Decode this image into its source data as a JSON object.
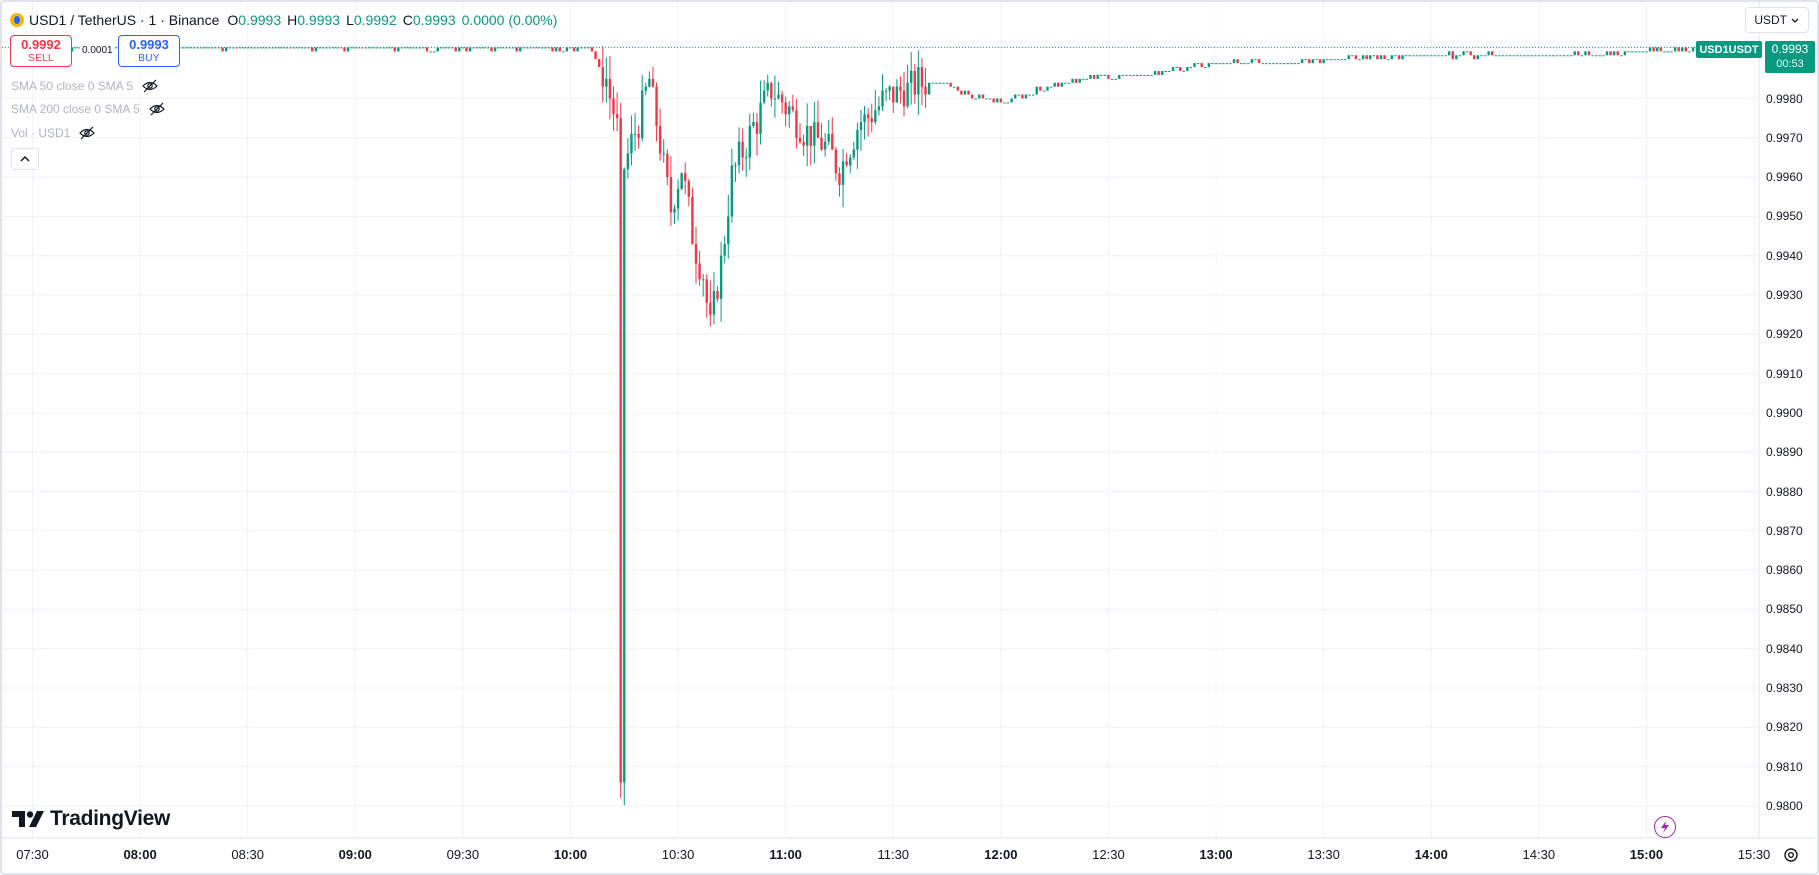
{
  "legend": {
    "symbol": "USD1 / TetherUS · 1 · Binance",
    "open_label": "O",
    "open_value": "0.9993",
    "high_label": "H",
    "high_value": "0.9993",
    "low_label": "L",
    "low_value": "0.9992",
    "close_label": "C",
    "close_value": "0.9993",
    "change_value": "0.0000 (0.00%)"
  },
  "trade": {
    "sell_price": "0.9992",
    "sell_label": "SELL",
    "spread": "0.0001",
    "buy_price": "0.9993",
    "buy_label": "BUY"
  },
  "studies": [
    {
      "label": "SMA 50 close 0 SMA 5"
    },
    {
      "label": "SMA 200 close 0 SMA 5"
    },
    {
      "label": "Vol · USD1"
    }
  ],
  "currency_selector": "USDT",
  "price_scale": {
    "symbol_label": "USD1USDT",
    "last_price": "0.9993",
    "countdown": "00:53",
    "ticks": [
      "0.9980",
      "0.9970",
      "0.9960",
      "0.9950",
      "0.9940",
      "0.9930",
      "0.9920",
      "0.9910",
      "0.9900",
      "0.9890",
      "0.9880",
      "0.9870",
      "0.9860",
      "0.9850",
      "0.9840",
      "0.9830",
      "0.9820",
      "0.9810",
      "0.9800"
    ]
  },
  "time_scale": {
    "ticks": [
      {
        "label": "07:30",
        "t": 450,
        "hour": false
      },
      {
        "label": "08:00",
        "t": 480,
        "hour": true
      },
      {
        "label": "08:30",
        "t": 510,
        "hour": false
      },
      {
        "label": "09:00",
        "t": 540,
        "hour": true
      },
      {
        "label": "09:30",
        "t": 570,
        "hour": false
      },
      {
        "label": "10:00",
        "t": 600,
        "hour": true
      },
      {
        "label": "10:30",
        "t": 630,
        "hour": false
      },
      {
        "label": "11:00",
        "t": 660,
        "hour": true
      },
      {
        "label": "11:30",
        "t": 690,
        "hour": false
      },
      {
        "label": "12:00",
        "t": 720,
        "hour": true
      },
      {
        "label": "12:30",
        "t": 750,
        "hour": false
      },
      {
        "label": "13:00",
        "t": 780,
        "hour": true
      },
      {
        "label": "13:30",
        "t": 810,
        "hour": false
      },
      {
        "label": "14:00",
        "t": 840,
        "hour": true
      },
      {
        "label": "14:30",
        "t": 870,
        "hour": false
      },
      {
        "label": "15:00",
        "t": 900,
        "hour": true
      },
      {
        "label": "15:30",
        "t": 930,
        "hour": false
      }
    ]
  },
  "brand": "TradingView",
  "colors": {
    "up": "#089981",
    "down": "#f23645",
    "grid": "#f0f3fa",
    "buy": "#2962ff",
    "lightning": "#9c27b0"
  },
  "chart_data": {
    "type": "candlestick",
    "interval_minutes": 1,
    "y_range": [
      0.9799,
      1.0
    ],
    "x_range": [
      "07:27",
      "15:42"
    ],
    "keypoints": [
      {
        "t": 447,
        "price": 0.9993
      },
      {
        "t": 605,
        "price": 0.9993
      },
      {
        "t": 610,
        "price": 0.9985
      },
      {
        "t": 613,
        "price": 0.9972
      },
      {
        "t": 614,
        "price": 0.9802
      },
      {
        "t": 615,
        "price": 0.9963
      },
      {
        "t": 619,
        "price": 0.9974
      },
      {
        "t": 622,
        "price": 0.9985
      },
      {
        "t": 625,
        "price": 0.9968
      },
      {
        "t": 628,
        "price": 0.9952
      },
      {
        "t": 631,
        "price": 0.9963
      },
      {
        "t": 634,
        "price": 0.9945
      },
      {
        "t": 637,
        "price": 0.9935
      },
      {
        "t": 639,
        "price": 0.9922
      },
      {
        "t": 642,
        "price": 0.9938
      },
      {
        "t": 645,
        "price": 0.996
      },
      {
        "t": 650,
        "price": 0.9971
      },
      {
        "t": 656,
        "price": 0.9982
      },
      {
        "t": 661,
        "price": 0.9977
      },
      {
        "t": 665,
        "price": 0.9972
      },
      {
        "t": 671,
        "price": 0.9968
      },
      {
        "t": 675,
        "price": 0.9962
      },
      {
        "t": 680,
        "price": 0.9973
      },
      {
        "t": 688,
        "price": 0.998
      },
      {
        "t": 697,
        "price": 0.9984
      },
      {
        "t": 705,
        "price": 0.9984
      },
      {
        "t": 711,
        "price": 0.9981
      },
      {
        "t": 720,
        "price": 0.9979
      },
      {
        "t": 730,
        "price": 0.9982
      },
      {
        "t": 740,
        "price": 0.9985
      },
      {
        "t": 760,
        "price": 0.9986
      },
      {
        "t": 780,
        "price": 0.9989
      },
      {
        "t": 810,
        "price": 0.999
      },
      {
        "t": 840,
        "price": 0.9991
      },
      {
        "t": 870,
        "price": 0.9991
      },
      {
        "t": 900,
        "price": 0.9992
      },
      {
        "t": 922,
        "price": 0.9993
      },
      {
        "t": 927,
        "price": 0.9993
      }
    ]
  }
}
